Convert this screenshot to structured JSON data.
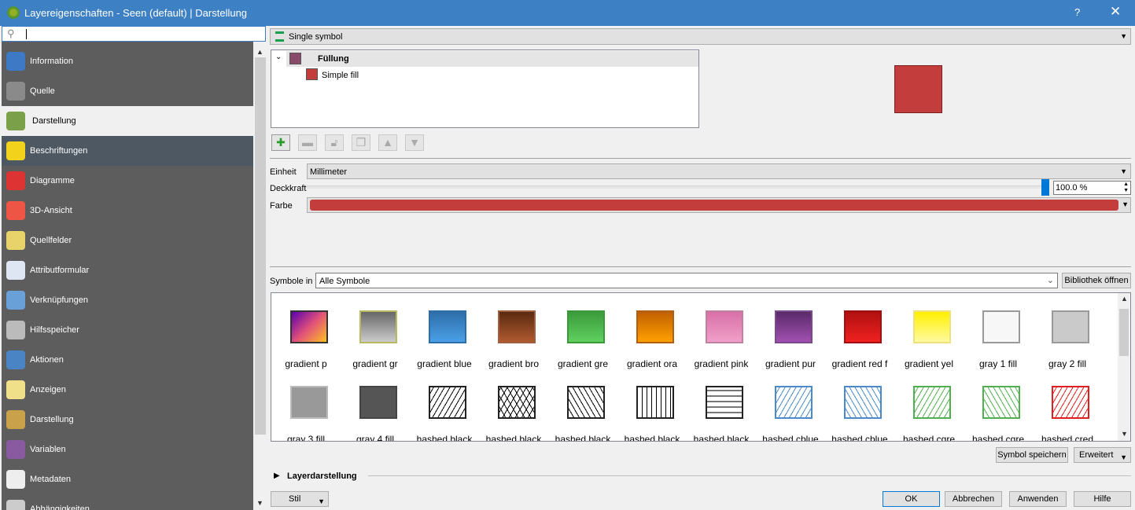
{
  "window": {
    "title": "Layereigenschaften - Seen (default) | Darstellung",
    "help": "?",
    "close": "✕"
  },
  "search": {
    "value": "",
    "icon": "search-icon"
  },
  "sidebar": {
    "items": [
      {
        "label": "Information",
        "icon": "info-icon",
        "color": "#3d79c4"
      },
      {
        "label": "Quelle",
        "icon": "wrench-gear-icon",
        "color": "#8a8a8a"
      },
      {
        "label": "Darstellung",
        "icon": "paintbrush-icon",
        "color": "#7aa04a",
        "selected": true
      },
      {
        "label": "Beschriftungen",
        "icon": "abc-label-icon",
        "color": "#f2d21b"
      },
      {
        "label": "Diagramme",
        "icon": "diagram-icon",
        "color": "#d33"
      },
      {
        "label": "3D-Ansicht",
        "icon": "cube-icon",
        "color": "#e54"
      },
      {
        "label": "Quellfelder",
        "icon": "fields-icon",
        "color": "#e8d36a"
      },
      {
        "label": "Attributformular",
        "icon": "form-icon",
        "color": "#dde6f2"
      },
      {
        "label": "Verknüpfungen",
        "icon": "join-icon",
        "color": "#6aa0d8"
      },
      {
        "label": "Hilfsspeicher",
        "icon": "storage-icon",
        "color": "#bbb"
      },
      {
        "label": "Aktionen",
        "icon": "actions-icon",
        "color": "#4a84c4"
      },
      {
        "label": "Anzeigen",
        "icon": "tooltip-icon",
        "color": "#f0e08a"
      },
      {
        "label": "Darstellung",
        "icon": "brush-icon",
        "color": "#c9a14a"
      },
      {
        "label": "Variablen",
        "icon": "epsilon-icon",
        "color": "#8a5aa0"
      },
      {
        "label": "Metadaten",
        "icon": "metadata-icon",
        "color": "#eee"
      },
      {
        "label": "Abhängigkeiten",
        "icon": "dependencies-icon",
        "color": "#ccc"
      }
    ]
  },
  "renderer": {
    "value": "Single symbol"
  },
  "tree": {
    "root": "Füllung",
    "child": "Simple fill",
    "root_color": "#8a4a6a",
    "child_color": "#c43d3d"
  },
  "form": {
    "unit_label": "Einheit",
    "unit_value": "Millimeter",
    "opacity_label": "Deckkraft",
    "opacity_value": "100.0 %",
    "opacity": 1.0,
    "color_label": "Farbe",
    "color": "#c43d3d"
  },
  "symbols": {
    "label": "Symbole in",
    "group": "Alle Symbole",
    "open_library": "Bibliothek öffnen",
    "save_symbol": "Symbol speichern",
    "advanced": "Erweitert",
    "items": [
      {
        "name": "gradient  p",
        "bg": "linear-gradient(135deg,#5a00b0,#e0507a,#ffc020)",
        "border": "#333"
      },
      {
        "name": "gradient  gr",
        "bg": "linear-gradient(#666,#ccc)",
        "border": "#b8b860"
      },
      {
        "name": "gradient blue",
        "bg": "linear-gradient(#2e6ea8,#4aa0e8)",
        "border": "#2e6ea8"
      },
      {
        "name": "gradient bro",
        "bg": "linear-gradient(#5a2a10,#b05a30)",
        "border": "#a06040"
      },
      {
        "name": "gradient gre",
        "bg": "linear-gradient(#3a9a3a,#60d060)",
        "border": "#3a9a3a"
      },
      {
        "name": "gradient ora",
        "bg": "linear-gradient(#c06000,#ffa000)",
        "border": "#b06010"
      },
      {
        "name": "gradient pink",
        "bg": "linear-gradient(#d870a8,#f0a0c8)",
        "border": "#c080a0"
      },
      {
        "name": "gradient pur",
        "bg": "linear-gradient(#5a2a6a,#a050b0)",
        "border": "#7a4a8a"
      },
      {
        "name": "gradient red f",
        "bg": "linear-gradient(#b01010,#f02020)",
        "border": "#a01010"
      },
      {
        "name": "gradient yel",
        "bg": "linear-gradient(#fff000,#fffaa0)",
        "border": "#f0e080"
      },
      {
        "name": "gray 1 fill",
        "bg": "#f7f7f7",
        "border": "#999"
      },
      {
        "name": "gray 2 fill",
        "bg": "#cacaca",
        "border": "#999"
      },
      {
        "name": "gray 3 fill",
        "bg": "#999",
        "border": "#bbb"
      },
      {
        "name": "gray 4 fill",
        "bg": "#555",
        "border": "#444"
      },
      {
        "name": "hashed black",
        "bg": "repeating-linear-gradient(-60deg,#fff 0 5px,#000 5px 6px)",
        "border": "#222"
      },
      {
        "name": "hashed black",
        "bg": "repeating-linear-gradient(-60deg,transparent 0 6px,#000 6px 7px),repeating-linear-gradient(60deg,#fff 0 6px,#000 6px 7px)",
        "border": "#222"
      },
      {
        "name": "hashed black",
        "bg": "repeating-linear-gradient(60deg,#fff 0 5px,#000 5px 6px)",
        "border": "#222"
      },
      {
        "name": "hashed black",
        "bg": "repeating-linear-gradient(90deg,#fff 0 5px,#000 5px 6px)",
        "border": "#222"
      },
      {
        "name": "hashed black",
        "bg": "repeating-linear-gradient(0deg,#fff 0 5px,#777 5px 7px)",
        "border": "#222"
      },
      {
        "name": "hashed cblue",
        "bg": "repeating-linear-gradient(-60deg,#fff 0 5px,#4a8ac8 5px 6px)",
        "border": "#4a8ac8"
      },
      {
        "name": "hashed cblue",
        "bg": "repeating-linear-gradient(60deg,#fff 0 5px,#4a8ac8 5px 6px)",
        "border": "#4a8ac8"
      },
      {
        "name": "hashed cgre",
        "bg": "repeating-linear-gradient(-60deg,#fff 0 5px,#50b050 5px 6px)",
        "border": "#50b050"
      },
      {
        "name": "hashed cgre",
        "bg": "repeating-linear-gradient(60deg,#fff 0 5px,#50b050 5px 6px)",
        "border": "#50b050"
      },
      {
        "name": "hashed cred",
        "bg": "repeating-linear-gradient(-60deg,#fff 0 5px,#e02020 5px 6px)",
        "border": "#e02020"
      }
    ]
  },
  "layer_rendering": "Layerdarstellung",
  "footer": {
    "style": "Stil",
    "ok": "OK",
    "cancel": "Abbrechen",
    "apply": "Anwenden",
    "help": "Hilfe"
  }
}
